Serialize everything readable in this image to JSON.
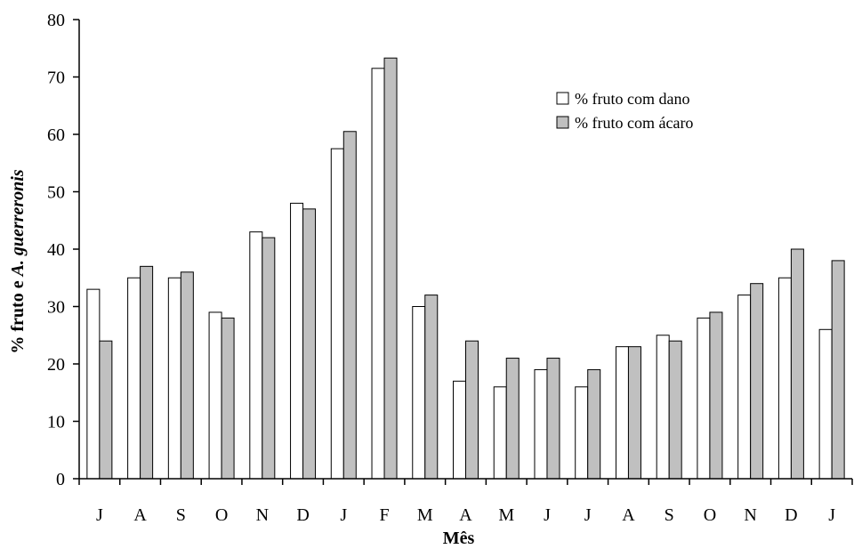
{
  "chart_data": {
    "type": "bar",
    "title": "",
    "xlabel": "Mês",
    "ylabel_prefix": "% fruto e ",
    "ylabel_italic": "A. guerreronis",
    "ylim": [
      0,
      80
    ],
    "yticks": [
      0,
      10,
      20,
      30,
      40,
      50,
      60,
      70,
      80
    ],
    "grid": false,
    "legend_position": "top-right",
    "categories": [
      "J",
      "A",
      "S",
      "O",
      "N",
      "D",
      "J",
      "F",
      "M",
      "A",
      "M",
      "J",
      "J",
      "A",
      "S",
      "O",
      "N",
      "D",
      "J"
    ],
    "series": [
      {
        "name": "% fruto com dano",
        "color": "#ffffff",
        "values": [
          33,
          35,
          35,
          29,
          43,
          48,
          57.5,
          71.5,
          30,
          17,
          16,
          19,
          16,
          23,
          25,
          28,
          32,
          35,
          26
        ]
      },
      {
        "name": "% fruto com ácaro",
        "color": "#c0c0c0",
        "values": [
          24,
          37,
          36,
          28,
          42,
          47,
          60.5,
          73.3,
          32,
          24,
          21,
          21,
          19,
          23,
          24,
          29,
          34,
          40,
          38
        ]
      }
    ]
  }
}
